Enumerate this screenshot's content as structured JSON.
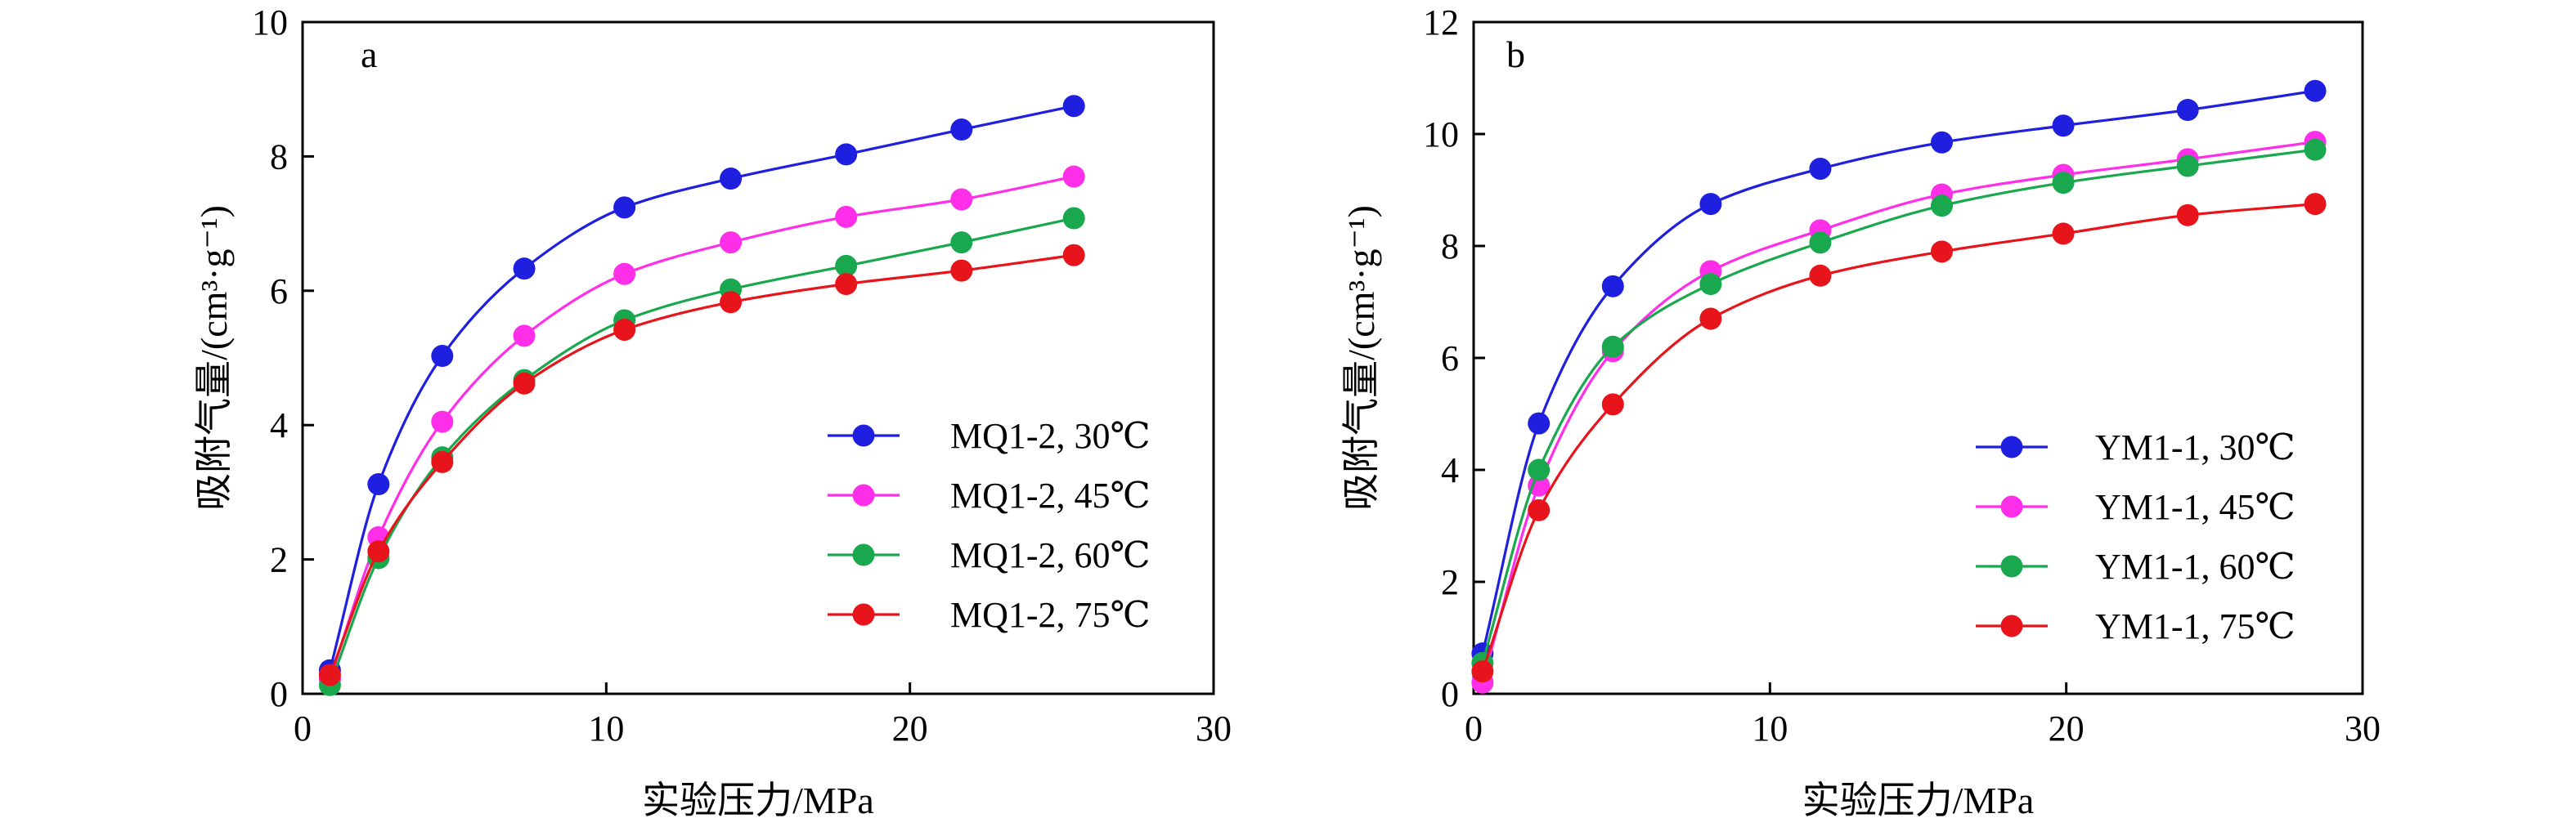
{
  "chart_data": [
    {
      "type": "line",
      "panel_label": "a",
      "xlabel": "实验压力/MPa",
      "ylabel": "吸附气量/(cm³·g⁻¹)",
      "xlim": [
        0,
        30
      ],
      "ylim": [
        0,
        10
      ],
      "xticks": [
        "0",
        "10",
        "20",
        "30"
      ],
      "yticks": [
        "0",
        "2",
        "4",
        "6",
        "8",
        "10"
      ],
      "legend_position": "bottom-right",
      "markers": true,
      "series": [
        {
          "name": "MQ1-2, 30℃",
          "color": "#1f1fe0",
          "x": [
            0.9,
            2.5,
            4.6,
            7.3,
            10.6,
            14.1,
            17.9,
            21.7,
            25.4
          ],
          "y": [
            0.35,
            3.12,
            5.03,
            6.33,
            7.24,
            7.67,
            8.03,
            8.4,
            8.75
          ]
        },
        {
          "name": "MQ1-2, 45℃",
          "color": "#ff2ee8",
          "x": [
            0.9,
            2.5,
            4.6,
            7.3,
            10.6,
            14.1,
            17.9,
            21.7,
            25.4
          ],
          "y": [
            0.22,
            2.33,
            4.05,
            5.33,
            6.25,
            6.72,
            7.1,
            7.36,
            7.7
          ]
        },
        {
          "name": "MQ1-2, 60℃",
          "color": "#1aa84e",
          "x": [
            0.9,
            2.5,
            4.6,
            7.3,
            10.6,
            14.1,
            17.9,
            21.7,
            25.4
          ],
          "y": [
            0.13,
            2.02,
            3.52,
            4.67,
            5.56,
            6.02,
            6.37,
            6.72,
            7.08
          ]
        },
        {
          "name": "MQ1-2, 75℃",
          "color": "#e8141b",
          "x": [
            0.9,
            2.5,
            4.6,
            7.3,
            10.6,
            14.1,
            17.9,
            21.7,
            25.4
          ],
          "y": [
            0.28,
            2.12,
            3.45,
            4.62,
            5.42,
            5.83,
            6.1,
            6.3,
            6.53
          ]
        }
      ]
    },
    {
      "type": "line",
      "panel_label": "b",
      "xlabel": "实验压力/MPa",
      "ylabel": "吸附气量/(cm³·g⁻¹)",
      "xlim": [
        0,
        30
      ],
      "ylim": [
        0,
        12
      ],
      "xticks": [
        "0",
        "10",
        "20",
        "30"
      ],
      "yticks": [
        "0",
        "2",
        "4",
        "6",
        "8",
        "10",
        "12"
      ],
      "legend_position": "bottom-right",
      "markers": true,
      "series": [
        {
          "name": "YM1-1, 30℃",
          "color": "#1f1fe0",
          "x": [
            0.3,
            2.2,
            4.7,
            8.0,
            11.7,
            15.8,
            19.9,
            24.1,
            28.4
          ],
          "y": [
            0.72,
            4.83,
            7.28,
            8.75,
            9.38,
            9.85,
            10.15,
            10.43,
            10.77
          ]
        },
        {
          "name": "YM1-1, 45℃",
          "color": "#ff2ee8",
          "x": [
            0.3,
            2.2,
            4.7,
            8.0,
            11.7,
            15.8,
            19.9,
            24.1,
            28.4
          ],
          "y": [
            0.2,
            3.72,
            6.12,
            7.55,
            8.28,
            8.92,
            9.27,
            9.55,
            9.86
          ]
        },
        {
          "name": "YM1-1, 60℃",
          "color": "#1aa84e",
          "x": [
            0.3,
            2.2,
            4.7,
            8.0,
            11.7,
            15.8,
            19.9,
            24.1,
            28.4
          ],
          "y": [
            0.55,
            4.0,
            6.2,
            7.32,
            8.06,
            8.72,
            9.13,
            9.43,
            9.72
          ]
        },
        {
          "name": "YM1-1, 75℃",
          "color": "#e8141b",
          "x": [
            0.3,
            2.2,
            4.7,
            8.0,
            11.7,
            15.8,
            19.9,
            24.1,
            28.4
          ],
          "y": [
            0.4,
            3.28,
            5.17,
            6.7,
            7.47,
            7.9,
            8.22,
            8.55,
            8.75
          ]
        }
      ]
    }
  ]
}
